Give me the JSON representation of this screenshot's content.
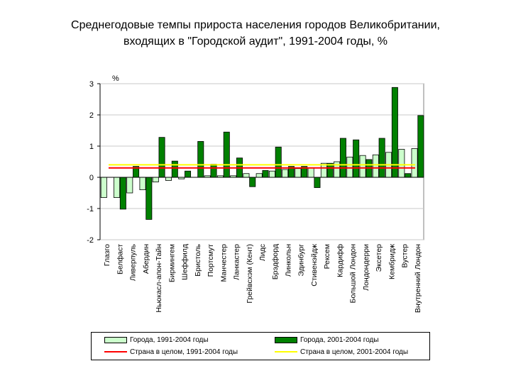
{
  "chart_data": {
    "type": "bar",
    "title": [
      "Среднегодовые темпы прироста населения городов Великобритании,",
      "входящих в \"Городской аудит\", 1991-2004 годы, %"
    ],
    "ylabel": "%",
    "ylim": [
      -2,
      3
    ],
    "yticks": [
      "-2",
      "-1",
      "0",
      "1",
      "2",
      "3"
    ],
    "categories": [
      "Глазго",
      "Белфаст",
      "Ливерпуль",
      "Абердин",
      "Ньюкасл-апон-Тайн",
      "Бирмингем",
      "Шеффилд",
      "Бристоль",
      "Портсмут",
      "Манчестер",
      "Ланкастер",
      "Грейвсхэм (Кент)",
      "Лидс",
      "Брэдфорд",
      "Линкольн",
      "Эдинбург",
      "Стивенэйдж",
      "Рексем",
      "Кардифф",
      "Большой Лондон",
      "Лондондерри",
      "Эксетер",
      "Кембридж",
      "Вустер",
      "Внутренний Лондон"
    ],
    "series": [
      {
        "name": "Города, 1991-2004 годы",
        "color": "#ccffcc",
        "values": [
          -0.65,
          -0.65,
          -0.5,
          -0.4,
          -0.15,
          -0.1,
          -0.05,
          0.0,
          0.05,
          0.05,
          0.05,
          0.12,
          0.12,
          0.2,
          0.25,
          0.28,
          0.3,
          0.45,
          0.5,
          0.65,
          0.7,
          0.72,
          0.8,
          0.9,
          0.92
        ]
      },
      {
        "name": "Города, 2001-2004 годы",
        "color": "#008000",
        "values": [
          0.0,
          -1.02,
          0.35,
          -1.35,
          1.28,
          0.52,
          0.2,
          1.15,
          0.42,
          1.45,
          0.62,
          -0.3,
          0.22,
          0.97,
          0.35,
          0.35,
          -0.33,
          0.45,
          1.25,
          1.2,
          0.57,
          1.25,
          2.88,
          0.12,
          1.98
        ]
      }
    ],
    "reference_lines": [
      {
        "name": "Страна в целом, 1991-2004 годы",
        "color": "#ff0000",
        "value": 0.3
      },
      {
        "name": "Страна в целом, 2001-2004 годы",
        "color": "#ffff00",
        "value": 0.4
      }
    ],
    "legend_position": "bottom"
  }
}
